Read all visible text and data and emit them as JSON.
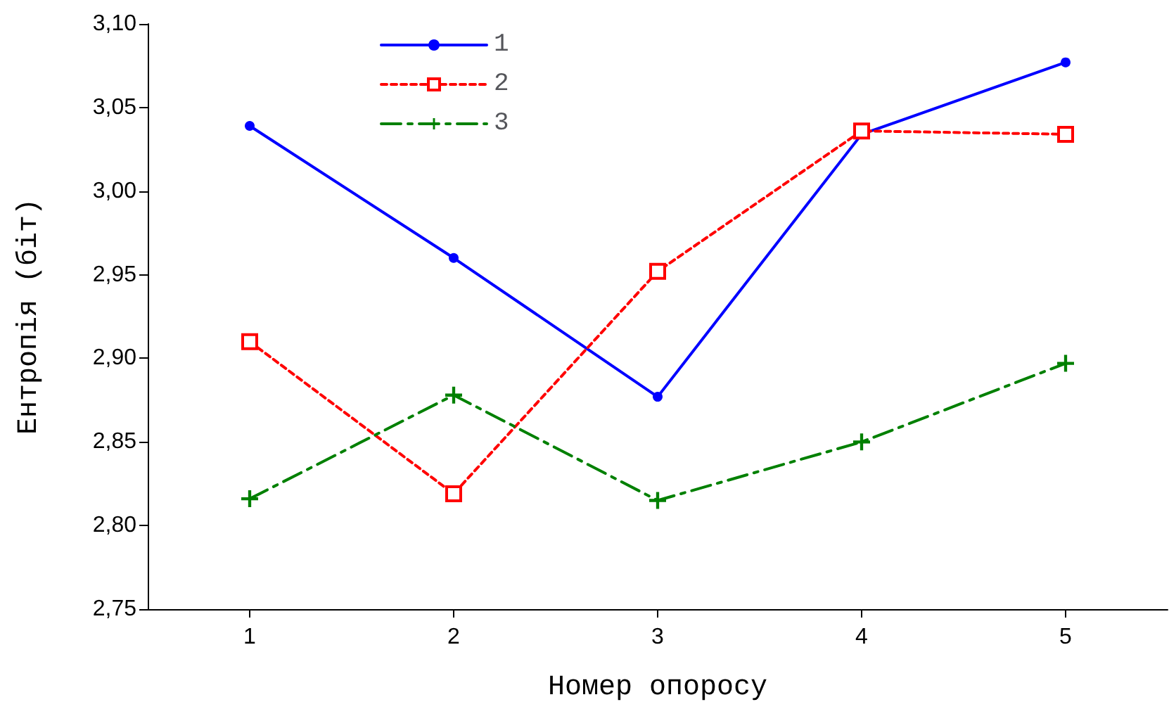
{
  "chart_data": {
    "type": "line",
    "xlabel": "Номер опоросу",
    "ylabel": "Ентропія (біт)",
    "categories": [
      "1",
      "2",
      "3",
      "4",
      "5"
    ],
    "series": [
      {
        "name": "1",
        "color": "#0000ff",
        "marker": "circle",
        "line_style": "solid",
        "values": [
          3.039,
          2.96,
          2.877,
          3.034,
          3.077
        ]
      },
      {
        "name": "2",
        "color": "#ff0000",
        "marker": "square",
        "line_style": "dashed",
        "values": [
          2.91,
          2.819,
          2.952,
          3.036,
          3.034
        ]
      },
      {
        "name": "3",
        "color": "#008000",
        "marker": "cross",
        "line_style": "dashed",
        "values": [
          2.816,
          2.878,
          2.815,
          2.85,
          2.897
        ]
      }
    ],
    "ylim": [
      2.75,
      3.1
    ],
    "yticks": [
      {
        "value": 2.75,
        "label": "2,75"
      },
      {
        "value": 2.8,
        "label": "2,80"
      },
      {
        "value": 2.85,
        "label": "2,85"
      },
      {
        "value": 2.9,
        "label": "2,90"
      },
      {
        "value": 2.95,
        "label": "2,95"
      },
      {
        "value": 3.0,
        "label": "3,00"
      },
      {
        "value": 3.05,
        "label": "3,05"
      },
      {
        "value": 3.1,
        "label": "3,10"
      }
    ],
    "grid": false,
    "legend": "top"
  }
}
